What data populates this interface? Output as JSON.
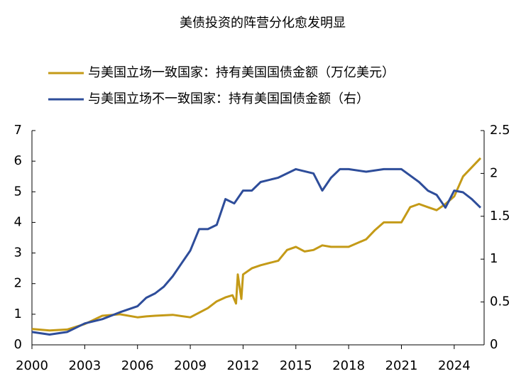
{
  "chart_data": {
    "type": "line",
    "title": "美债投资的阵营分化愈发明显",
    "xlim": [
      2000,
      2025.7
    ],
    "xticks": [
      2000,
      2003,
      2006,
      2009,
      2012,
      2015,
      2018,
      2021,
      2024
    ],
    "ylim": [
      0,
      7
    ],
    "yticks": [
      0,
      1,
      2,
      3,
      4,
      5,
      6,
      7
    ],
    "y2lim": [
      0,
      2.5
    ],
    "y2ticks": [
      0,
      0.5,
      1,
      1.5,
      2,
      2.5
    ],
    "series": [
      {
        "name": "与美国立场一致国家：持有美国国债金额（万亿美元）",
        "color": "#c49a17",
        "x": [
          2000,
          2001,
          2002,
          2003,
          2004,
          2005,
          2006,
          2006.5,
          2007,
          2008,
          2009,
          2009.5,
          2010,
          2010.5,
          2011,
          2011.4,
          2011.6,
          2011.7,
          2011.9,
          2012,
          2012.5,
          2013,
          2014,
          2014.5,
          2015,
          2015.5,
          2016,
          2016.5,
          2017,
          2018,
          2019,
          2019.5,
          2020,
          2021,
          2021.5,
          2022,
          2022.5,
          2023,
          2023.5,
          2024,
          2024.5,
          2025,
          2025.5
        ],
        "values": [
          0.52,
          0.47,
          0.5,
          0.68,
          0.95,
          1.0,
          0.9,
          0.93,
          0.95,
          0.98,
          0.9,
          1.05,
          1.2,
          1.42,
          1.55,
          1.62,
          1.35,
          2.3,
          1.5,
          2.3,
          2.5,
          2.6,
          2.75,
          3.1,
          3.2,
          3.05,
          3.1,
          3.25,
          3.2,
          3.2,
          3.45,
          3.75,
          4.0,
          4.0,
          4.5,
          4.6,
          4.5,
          4.4,
          4.6,
          4.85,
          5.5,
          5.8,
          6.1
        ]
      },
      {
        "name": "与美国立场不一致国家：持有美国国债金额（右）",
        "color": "#2e4d9a",
        "axis": "y2",
        "x": [
          2000,
          2001,
          2002,
          2003,
          2004,
          2005,
          2006,
          2006.5,
          2007,
          2007.5,
          2008,
          2008.5,
          2009,
          2009.5,
          2010,
          2010.5,
          2011,
          2011.5,
          2012,
          2012.5,
          2013,
          2014,
          2015,
          2016,
          2016.5,
          2017,
          2017.5,
          2018,
          2019,
          2020,
          2021,
          2022,
          2022.5,
          2023,
          2023.5,
          2024,
          2024.5,
          2025,
          2025.5
        ],
        "values": [
          0.15,
          0.12,
          0.15,
          0.25,
          0.3,
          0.38,
          0.45,
          0.55,
          0.6,
          0.68,
          0.8,
          0.95,
          1.1,
          1.35,
          1.35,
          1.4,
          1.7,
          1.65,
          1.8,
          1.8,
          1.9,
          1.95,
          2.05,
          2.0,
          1.8,
          1.95,
          2.05,
          2.05,
          2.02,
          2.05,
          2.05,
          1.9,
          1.8,
          1.75,
          1.6,
          1.8,
          1.78,
          1.7,
          1.6
        ]
      }
    ]
  }
}
